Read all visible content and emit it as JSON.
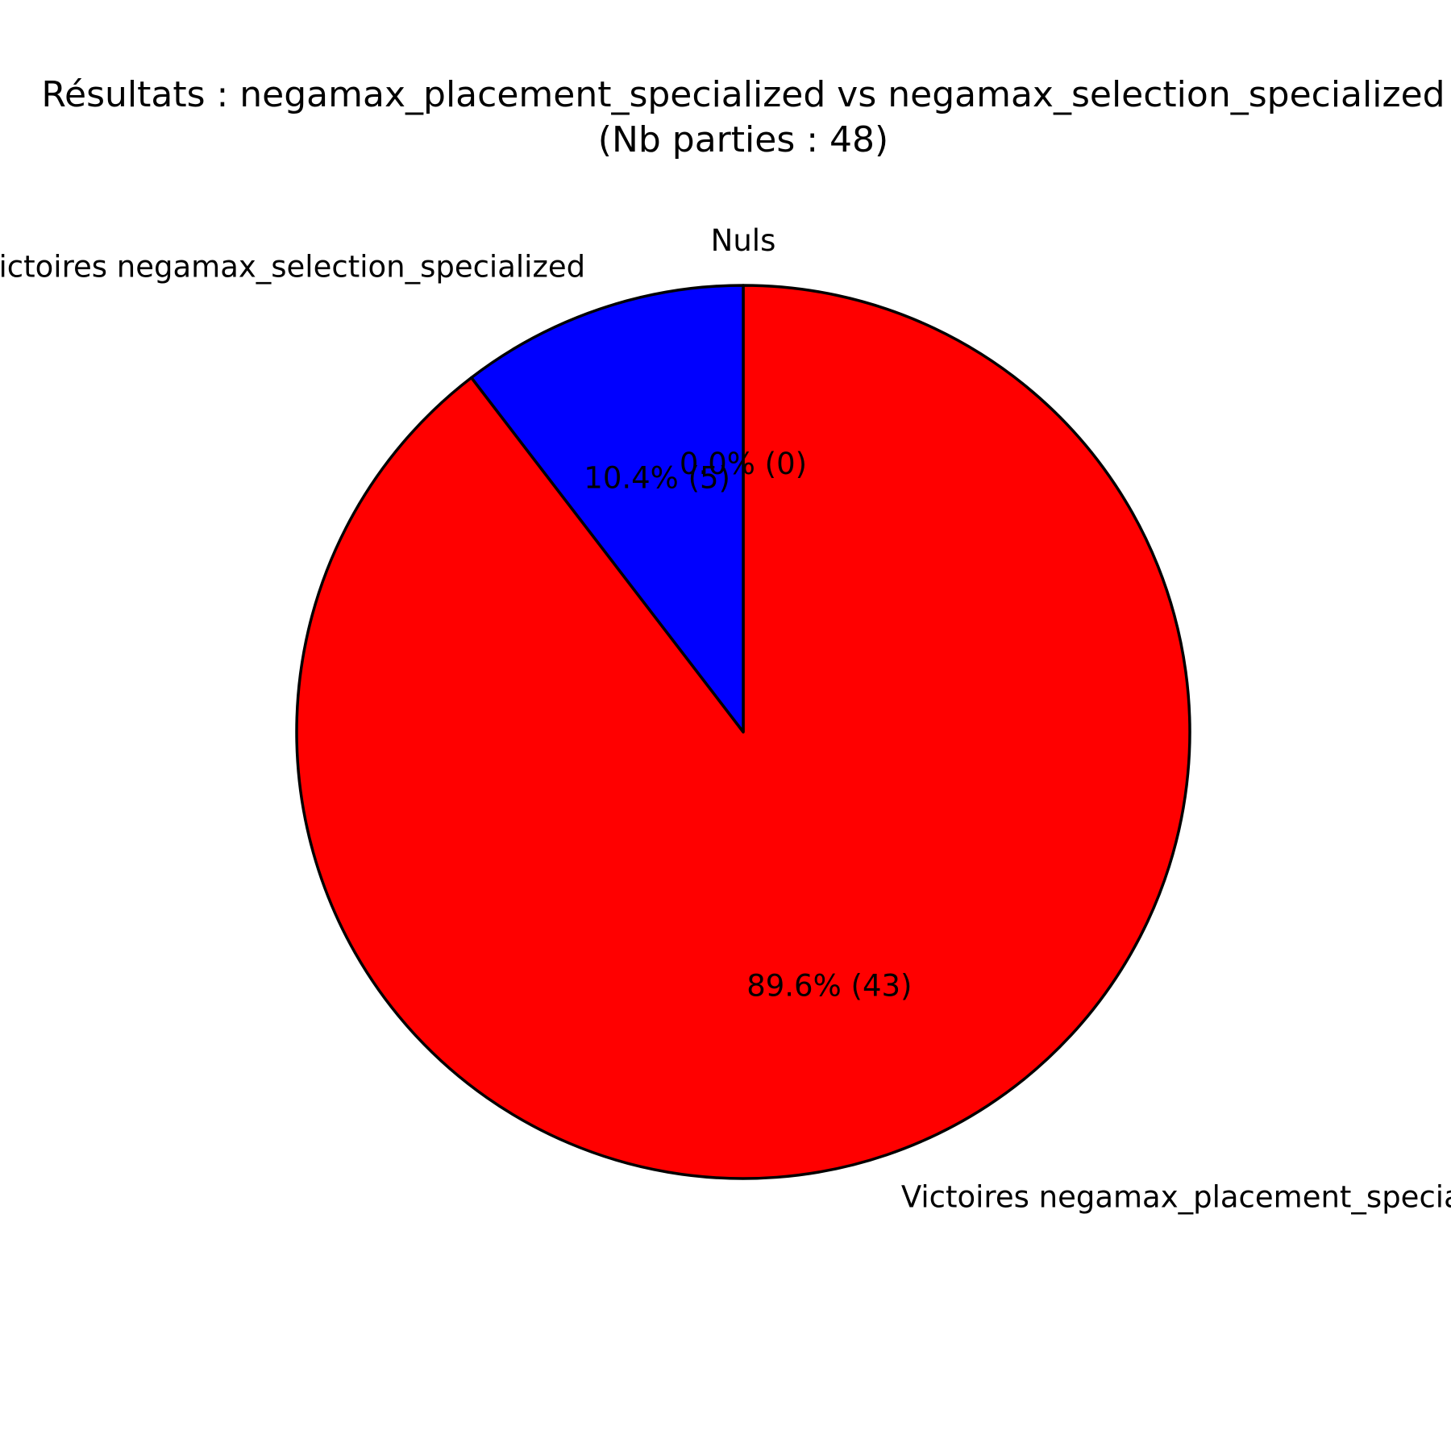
{
  "chart_data": {
    "type": "pie",
    "title": "Résultats : negamax_placement_specialized vs negamax_selection_specialized",
    "subtitle": "(Nb parties : 48)",
    "slices": [
      {
        "label": "Victoires negamax_placement_specialized",
        "value": 43,
        "percent_label": "89.6% (43)",
        "color": "#ff0000"
      },
      {
        "label": "Victoires negamax_selection_specialized",
        "value": 5,
        "percent_label": "10.4% (5)",
        "color": "#0000ff"
      },
      {
        "label": "Nuls",
        "value": 0,
        "percent_label": "0.0% (0)",
        "color": "#00aa00"
      }
    ],
    "start_angle_deg": 90,
    "direction": "clockwise",
    "edge_color": "#000000"
  }
}
